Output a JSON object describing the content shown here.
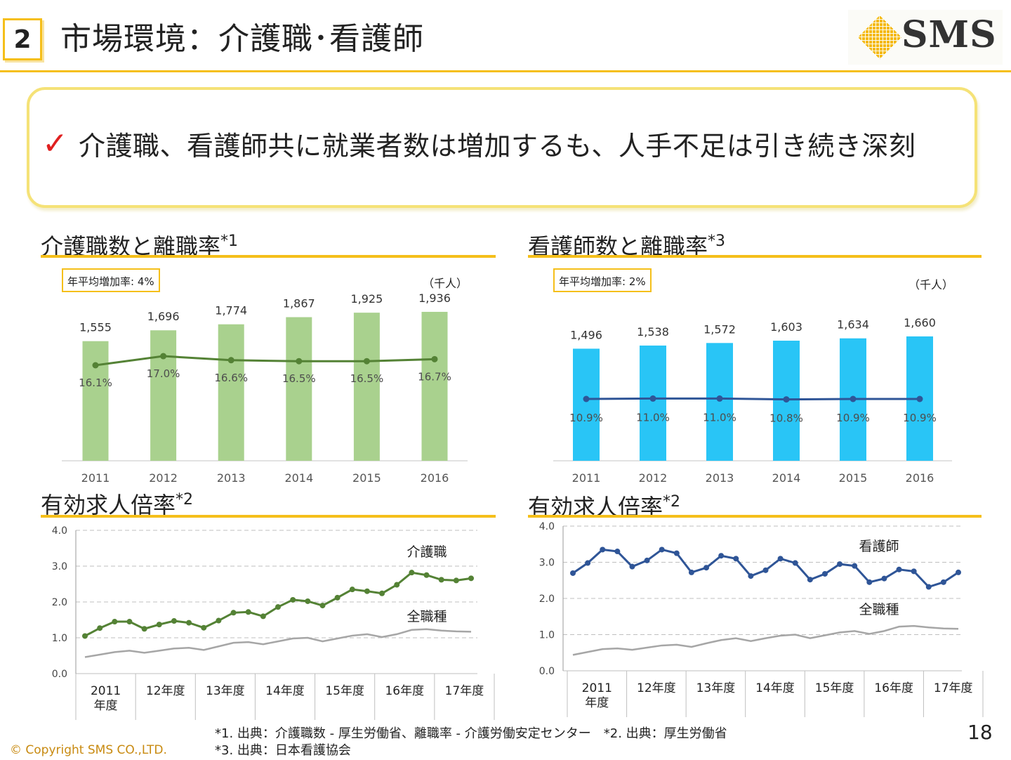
{
  "header": {
    "section_number": "2",
    "title": "市場環境：介護職･看護師",
    "logo_text": "SMS"
  },
  "callout": {
    "text": "介護職、看護師共に就業者数は増加するも、人手不足は引き続き深刻"
  },
  "panels": {
    "care_workers": {
      "title": "介護職数と離職率",
      "note": "*1",
      "badge": "年平均増加率: 4%",
      "unit": "（千人）"
    },
    "nurses": {
      "title": "看護師数と離職率",
      "note": "*3",
      "badge": "年平均増加率: 2%",
      "unit": "（千人）"
    },
    "jobs_left": {
      "title": "有効求人倍率",
      "note": "*2"
    },
    "jobs_right": {
      "title": "有効求人倍率",
      "note": "*2"
    }
  },
  "footer": {
    "source_line1": "*1. 出典：介護職数 - 厚生労働省、離職率 - 介護労働安定センター　*2. 出典：厚生労働省",
    "source_line2": "*3. 出典：日本看護協会",
    "copyright": "© Copyright SMS CO.,LTD.",
    "page_number": "18"
  },
  "colors": {
    "accent": "#f5bf1a",
    "care_bar": "#a9d18e",
    "care_line": "#548235",
    "nurse_bar": "#29c5f6",
    "nurse_line": "#2f5597",
    "all_jobs_line": "#a6a6a6"
  },
  "chart_data": [
    {
      "id": "care-workers",
      "type": "bar",
      "title": "介護職数と離職率",
      "categories": [
        "2011",
        "2012",
        "2013",
        "2014",
        "2015",
        "2016"
      ],
      "series": [
        {
          "name": "介護職数（千人）",
          "type": "bar",
          "values": [
            1555,
            1696,
            1774,
            1867,
            1925,
            1936
          ],
          "labels": [
            "1,555",
            "1,696",
            "1,774",
            "1,867",
            "1,925",
            "1,936"
          ]
        },
        {
          "name": "離職率",
          "type": "line",
          "values": [
            16.1,
            17.0,
            16.6,
            16.5,
            16.5,
            16.7
          ],
          "labels": [
            "16.1%",
            "17.0%",
            "16.6%",
            "16.5%",
            "16.5%",
            "16.7%"
          ]
        }
      ],
      "ylim": [
        0,
        2100
      ]
    },
    {
      "id": "nurses",
      "type": "bar",
      "title": "看護師数と離職率",
      "categories": [
        "2011",
        "2012",
        "2013",
        "2014",
        "2015",
        "2016"
      ],
      "series": [
        {
          "name": "看護師数（千人）",
          "type": "bar",
          "values": [
            1496,
            1538,
            1572,
            1603,
            1634,
            1660
          ],
          "labels": [
            "1,496",
            "1,538",
            "1,572",
            "1,603",
            "1,634",
            "1,660"
          ]
        },
        {
          "name": "離職率",
          "type": "line",
          "values": [
            10.9,
            11.0,
            11.0,
            10.8,
            10.9,
            10.9
          ],
          "labels": [
            "10.9%",
            "11.0%",
            "11.0%",
            "10.8%",
            "10.9%",
            "10.9%"
          ]
        }
      ],
      "ylim": [
        0,
        1800
      ]
    },
    {
      "id": "job-ratio-care",
      "type": "line",
      "title": "有効求人倍率",
      "ylim": [
        0,
        4
      ],
      "yticks": [
        "0.0",
        "1.0",
        "2.0",
        "3.0",
        "4.0"
      ],
      "xgroups": [
        [
          "2011",
          "年度"
        ],
        [
          "12年度"
        ],
        [
          "13年度"
        ],
        [
          "14年度"
        ],
        [
          "15年度"
        ],
        [
          "16年度"
        ],
        [
          "17年度"
        ]
      ],
      "series": [
        {
          "name": "介護職",
          "values": [
            1.05,
            1.27,
            1.45,
            1.45,
            1.25,
            1.37,
            1.47,
            1.42,
            1.28,
            1.48,
            1.7,
            1.72,
            1.6,
            1.86,
            2.06,
            2.02,
            1.9,
            2.12,
            2.35,
            2.3,
            2.24,
            2.48,
            2.82,
            2.75,
            2.62,
            2.6,
            2.66
          ]
        },
        {
          "name": "全職種",
          "values": [
            0.46,
            0.53,
            0.6,
            0.64,
            0.58,
            0.64,
            0.7,
            0.72,
            0.66,
            0.76,
            0.86,
            0.88,
            0.82,
            0.9,
            0.98,
            1.0,
            0.9,
            0.98,
            1.06,
            1.1,
            1.02,
            1.1,
            1.22,
            1.24,
            1.2,
            1.18,
            1.17
          ]
        }
      ]
    },
    {
      "id": "job-ratio-nurse",
      "type": "line",
      "title": "有効求人倍率",
      "ylim": [
        0,
        4
      ],
      "yticks": [
        "0.0",
        "1.0",
        "2.0",
        "3.0",
        "4.0"
      ],
      "xgroups": [
        [
          "2011",
          "年度"
        ],
        [
          "12年度"
        ],
        [
          "13年度"
        ],
        [
          "14年度"
        ],
        [
          "15年度"
        ],
        [
          "16年度"
        ],
        [
          "17年度"
        ]
      ],
      "series": [
        {
          "name": "看護師",
          "values": [
            2.7,
            2.98,
            3.35,
            3.3,
            2.88,
            3.05,
            3.35,
            3.25,
            2.72,
            2.85,
            3.18,
            3.1,
            2.62,
            2.78,
            3.1,
            2.98,
            2.52,
            2.68,
            2.95,
            2.9,
            2.45,
            2.55,
            2.8,
            2.75,
            2.32,
            2.45,
            2.72
          ]
        },
        {
          "name": "全職種",
          "values": [
            0.44,
            0.52,
            0.6,
            0.62,
            0.58,
            0.64,
            0.7,
            0.72,
            0.66,
            0.76,
            0.85,
            0.9,
            0.82,
            0.9,
            0.97,
            1.0,
            0.9,
            0.98,
            1.06,
            1.1,
            1.02,
            1.1,
            1.22,
            1.24,
            1.2,
            1.17,
            1.16
          ]
        }
      ]
    }
  ]
}
